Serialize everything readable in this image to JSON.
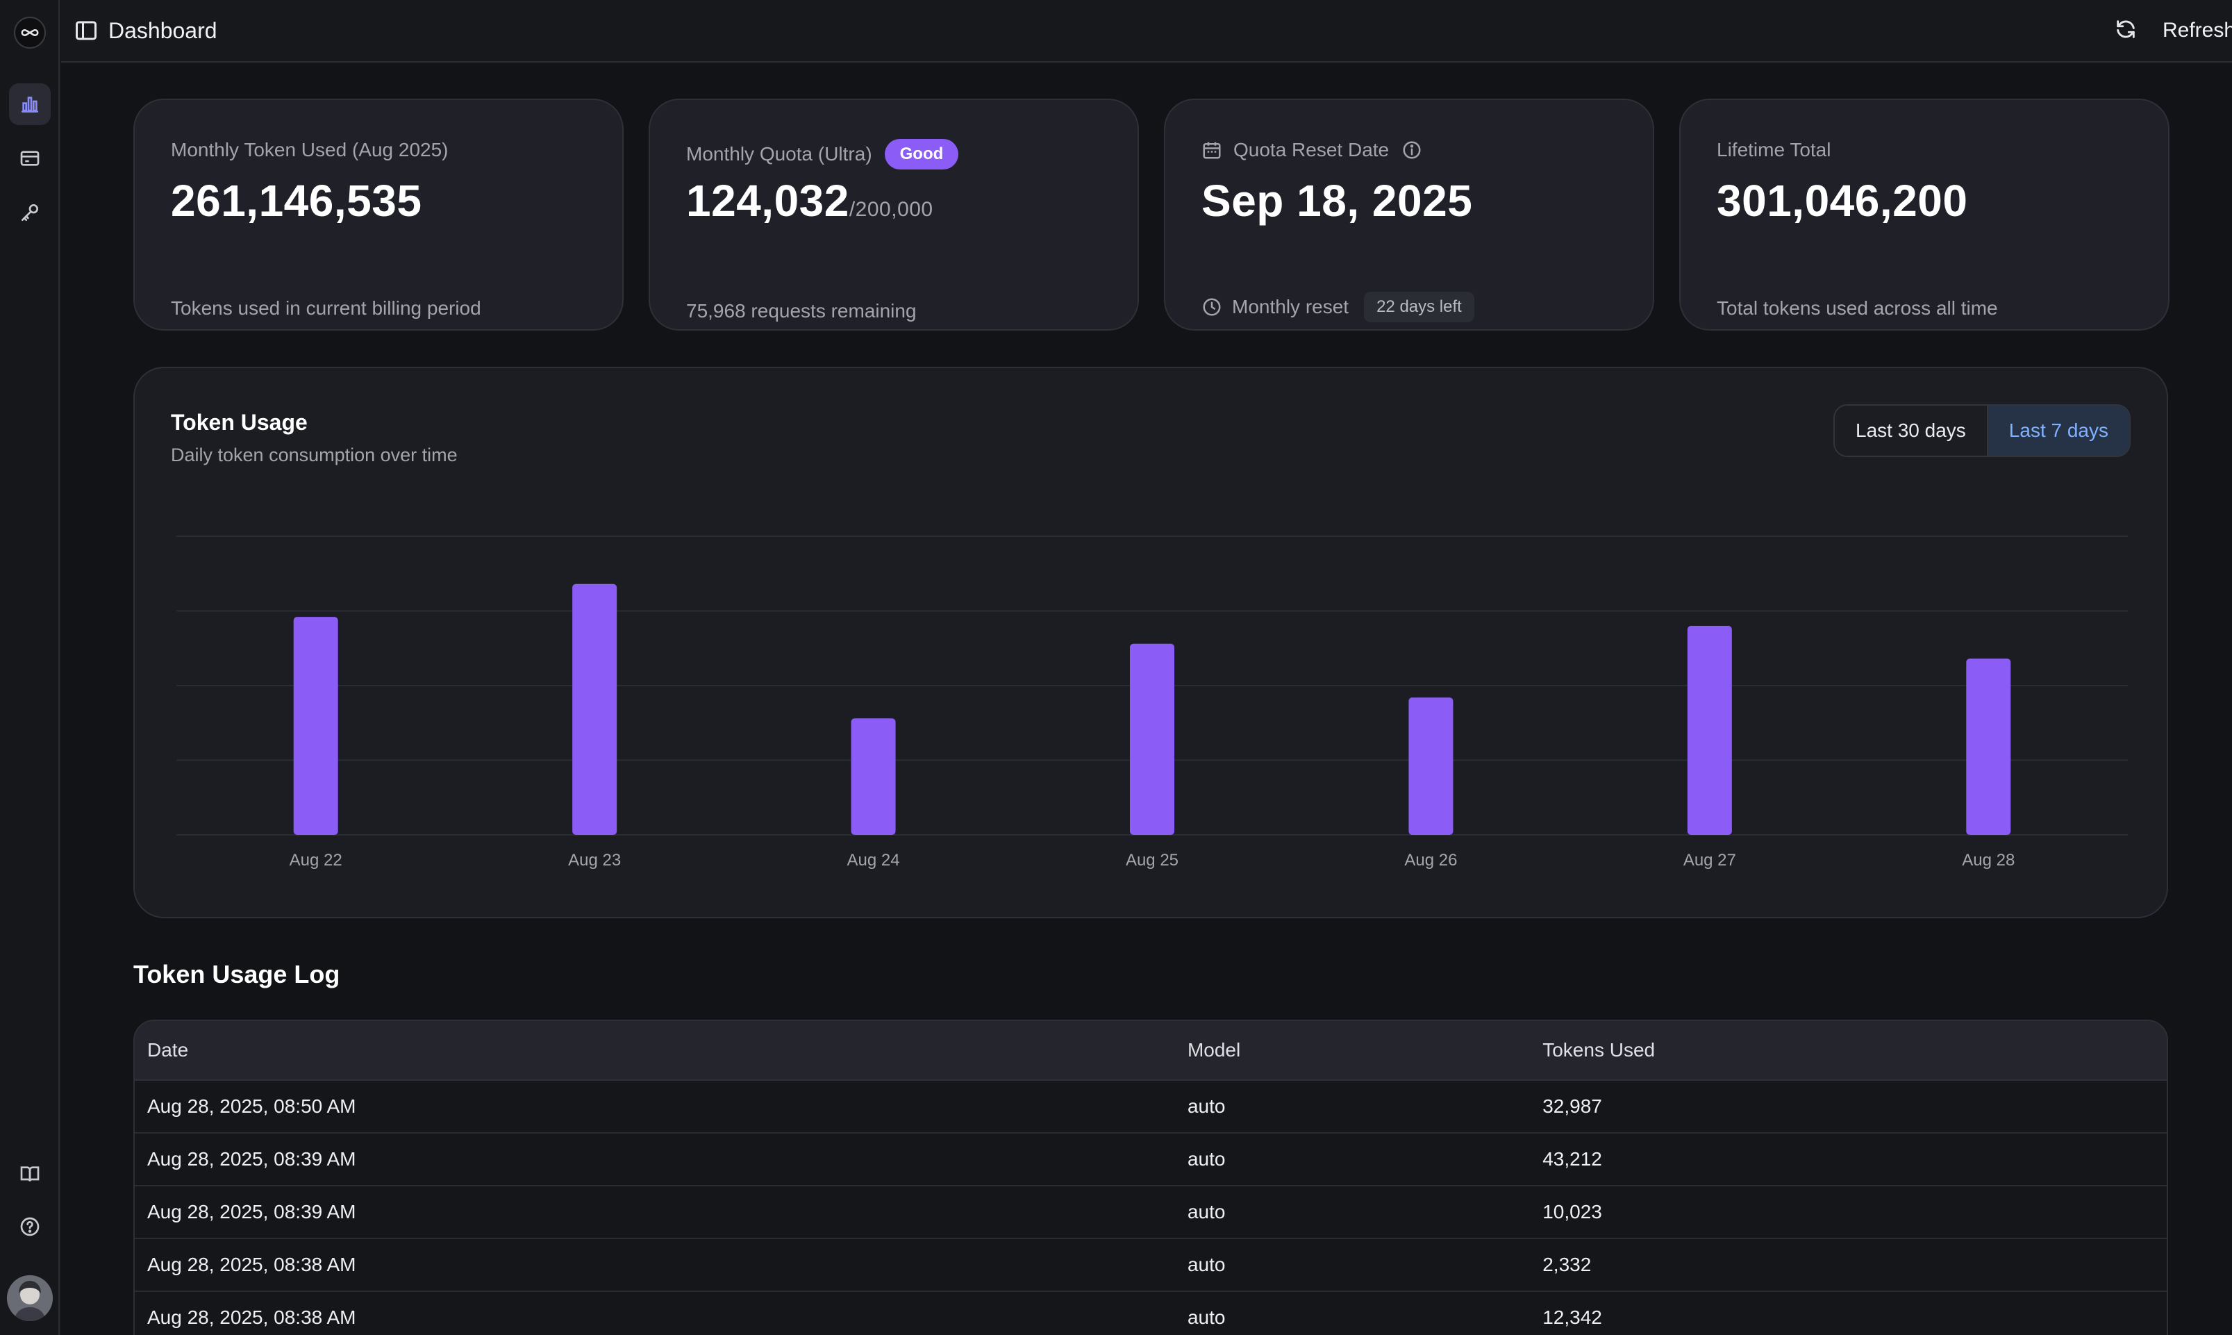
{
  "header": {
    "title": "Dashboard",
    "refresh_label": "Refresh"
  },
  "cards": [
    {
      "label": "Monthly Token Used (Aug 2025)",
      "value": "261,146,535",
      "sub": "Tokens used in current billing period"
    },
    {
      "label": "Monthly Quota (Ultra)",
      "badge": "Good",
      "value": "124,032",
      "denominator": "/200,000",
      "sub": "75,968 requests remaining"
    },
    {
      "label": "Quota Reset Date",
      "value": "Sep 18, 2025",
      "sub": "Monthly reset",
      "pill": "22 days left"
    },
    {
      "label": "Lifetime Total",
      "value": "301,046,200",
      "sub": "Total tokens used across all time"
    }
  ],
  "chart": {
    "title": "Token Usage",
    "subtitle": "Daily token consumption over time",
    "range_options": [
      "Last 30 days",
      "Last 7 days"
    ],
    "selected_range": "Last 7 days"
  },
  "chart_data": {
    "type": "bar",
    "categories": [
      "Aug 22",
      "Aug 23",
      "Aug 24",
      "Aug 25",
      "Aug 26",
      "Aug 27",
      "Aug 28"
    ],
    "values": [
      73,
      84,
      39,
      64,
      46,
      70,
      59
    ],
    "ylim": [
      0,
      100
    ],
    "grid": true,
    "bar_color": "#8b5cf6"
  },
  "log": {
    "title": "Token Usage Log",
    "columns": [
      "Date",
      "Model",
      "Tokens Used"
    ],
    "rows": [
      {
        "date": "Aug 28, 2025, 08:50 AM",
        "model": "auto",
        "tokens": "32,987"
      },
      {
        "date": "Aug 28, 2025, 08:39 AM",
        "model": "auto",
        "tokens": "43,212"
      },
      {
        "date": "Aug 28, 2025, 08:39 AM",
        "model": "auto",
        "tokens": "10,023"
      },
      {
        "date": "Aug 28, 2025, 08:38 AM",
        "model": "auto",
        "tokens": "2,332"
      },
      {
        "date": "Aug 28, 2025, 08:38 AM",
        "model": "auto",
        "tokens": "12,342"
      }
    ]
  },
  "icons": {
    "rail_top": [
      "bar-chart-icon",
      "credit-card-icon",
      "key-icon"
    ],
    "rail_bottom": [
      "book-icon",
      "help-circle-icon"
    ]
  },
  "colors": {
    "accent": "#8b5cf6",
    "selected_range_bg": "#263246",
    "selected_range_text": "#7fb2ff"
  }
}
